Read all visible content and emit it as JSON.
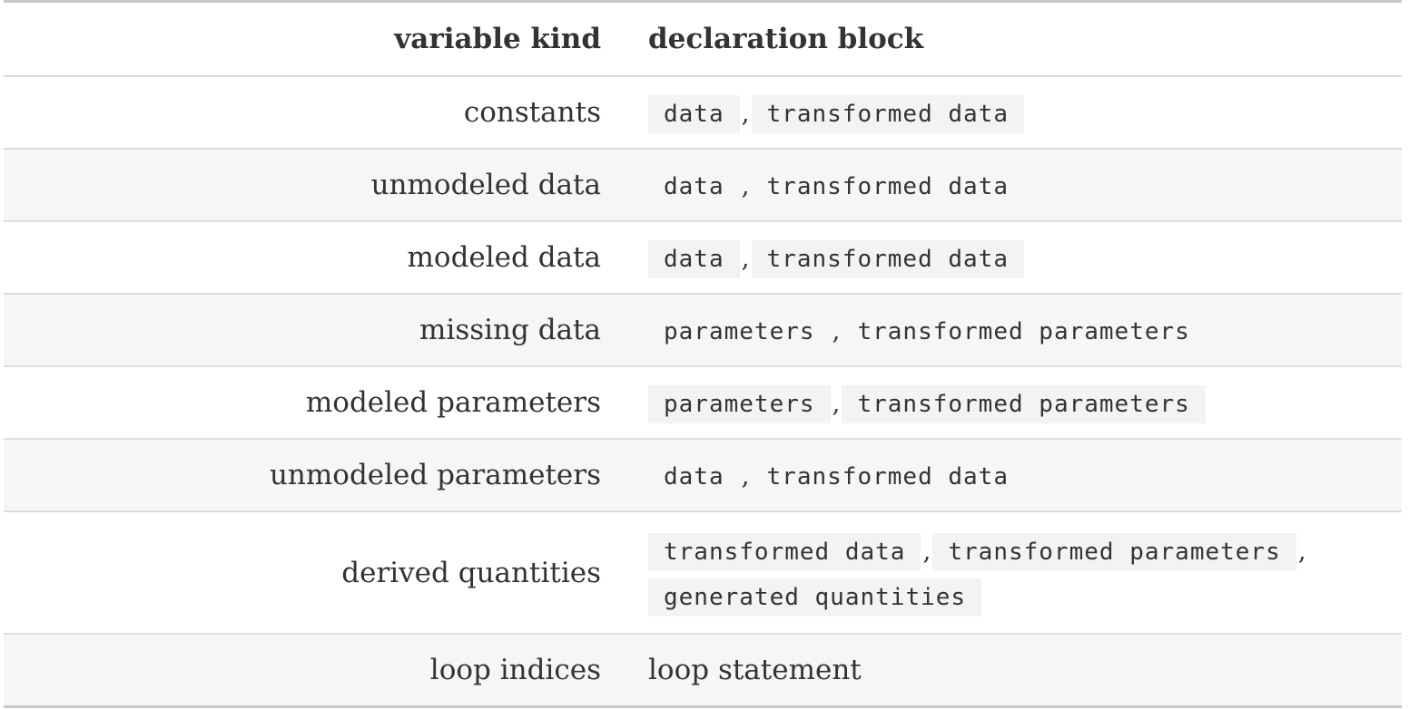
{
  "header": {
    "variable_kind": "variable kind",
    "declaration_block": "declaration block"
  },
  "rows": [
    {
      "kind": "constants",
      "blocks": [
        "data",
        "transformed data"
      ]
    },
    {
      "kind": "unmodeled data",
      "blocks": [
        "data",
        "transformed data"
      ]
    },
    {
      "kind": "modeled data",
      "blocks": [
        "data",
        "transformed data"
      ]
    },
    {
      "kind": "missing data",
      "blocks": [
        "parameters",
        "transformed parameters"
      ]
    },
    {
      "kind": "modeled parameters",
      "blocks": [
        "parameters",
        "transformed parameters"
      ]
    },
    {
      "kind": "unmodeled parameters",
      "blocks": [
        "data",
        "transformed data"
      ]
    },
    {
      "kind": "derived quantities",
      "blocks": [
        "transformed data",
        "transformed parameters",
        "generated quantities"
      ]
    },
    {
      "kind": "loop indices",
      "text": "loop statement"
    }
  ],
  "separator": ","
}
